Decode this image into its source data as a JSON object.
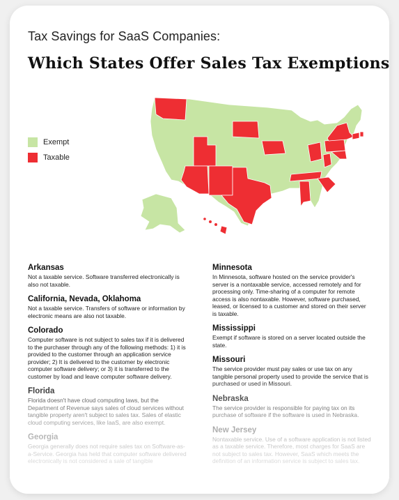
{
  "header": {
    "subtitle": "Tax Savings for SaaS Companies:",
    "title": "Which States Offer Sales Tax Exemptions?"
  },
  "legend": {
    "items": [
      {
        "label": "Exempt",
        "color": "#c7e5a4"
      },
      {
        "label": "Taxable",
        "color": "#ee2e33"
      }
    ]
  },
  "map": {
    "taxable_states": [
      "Washington",
      "Utah",
      "Arizona",
      "New Mexico",
      "Texas",
      "South Dakota",
      "Iowa",
      "Tennessee",
      "Alabama",
      "South Carolina",
      "Ohio",
      "West Virginia",
      "Pennsylvania",
      "New York",
      "Connecticut",
      "Rhode Island",
      "Maryland",
      "Hawaii"
    ],
    "exempt_color": "#c7e5a4",
    "taxable_color": "#ee2e33"
  },
  "states_left": [
    {
      "name": "Arkansas",
      "text": "Not a taxable service. Software transferred electronically is also not taxable."
    },
    {
      "name": "California, Nevada, Oklahoma",
      "text": "Not a taxable service. Transfers of software or information by electronic means are also not taxable."
    },
    {
      "name": "Colorado",
      "text": "Computer software is not subject to sales tax if it is delivered to the purchaser through any of the following methods: 1) it is provided to the customer through an application service provider; 2) It is delivered to the customer by electronic computer software delivery; or 3) it is transferred to the customer by load and leave computer software delivery."
    },
    {
      "name": "Florida",
      "text": "Florida doesn't have cloud computing laws, but the Department of Revenue says sales of cloud services without tangible property aren't subject to sales tax. Sales of elastic cloud computing services, like IaaS, are also exempt."
    },
    {
      "name": "Georgia",
      "text": "Georgia generally does not require sales tax on Software-as-a-Service. Georgia has held that computer software delivered electronically is not considered a sale of tangible"
    }
  ],
  "states_right": [
    {
      "name": "Minnesota",
      "text": "In Minnesota, software hosted on the service provider's server is a nontaxable service, accessed remotely and for processing only. Time-sharing of a computer for remote access is also nontaxable. However, software purchased, leased, or licensed to a customer and stored on their server is taxable."
    },
    {
      "name": "Mississippi",
      "text": "Exempt if software is stored on a server located outside the state."
    },
    {
      "name": "Missouri",
      "text": "The service provider must pay sales or use tax on any tangible personal property used to provide the service that is purchased or used in Missouri."
    },
    {
      "name": "Nebraska",
      "text": "The service provider is responsible for paying tax on its purchase of software if the software is used in Nebraska."
    },
    {
      "name": "New Jersey",
      "text": "Nontaxable service. Use of a software application is not listed as a taxable service. Therefore, most charges for SaaS are not subject to sales tax. However, SaaS which meets the definition of an information service is subject to sales tax."
    }
  ]
}
